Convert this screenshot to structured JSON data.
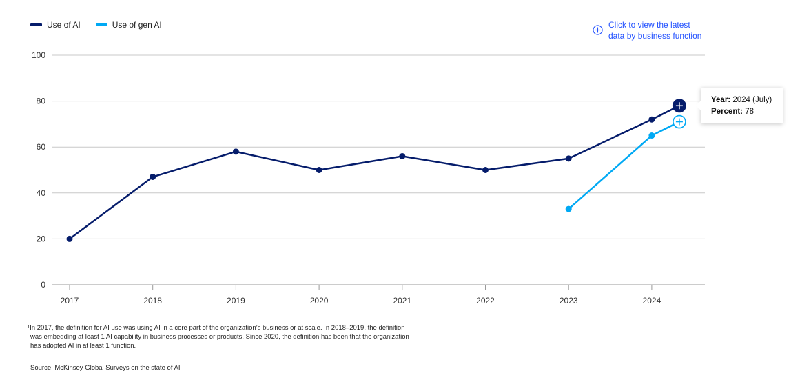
{
  "legend": {
    "items": [
      {
        "label": "Use of AI",
        "color": "#051c6b"
      },
      {
        "label": "Use of gen AI",
        "color": "#00a9f4"
      }
    ]
  },
  "cta": {
    "icon": "plus-circle-icon",
    "text_line1": "Click to view the latest",
    "text_line2": "data by business function",
    "color": "#2251ff"
  },
  "tooltip": {
    "year_label": "Year:",
    "year_value": "2024 (July)",
    "percent_label": "Percent:",
    "percent_value": "78"
  },
  "chart_data": {
    "type": "line",
    "x": [
      "2017",
      "2018",
      "2019",
      "2020",
      "2021",
      "2022",
      "2023",
      "2024",
      "2024 (July)"
    ],
    "xticks": [
      "2017",
      "2018",
      "2019",
      "2020",
      "2021",
      "2022",
      "2023",
      "2024"
    ],
    "yticks": [
      0,
      20,
      40,
      60,
      80,
      100
    ],
    "ylim": [
      0,
      100
    ],
    "grid": true,
    "legend_position": "top-left",
    "series": [
      {
        "name": "Use of AI",
        "color": "#051c6b",
        "values": [
          20,
          47,
          58,
          50,
          56,
          50,
          55,
          72,
          78
        ]
      },
      {
        "name": "Use of gen AI",
        "color": "#00a9f4",
        "values": [
          null,
          null,
          null,
          null,
          null,
          null,
          33,
          65,
          71
        ]
      }
    ]
  },
  "footnote": {
    "line1": "¹In 2017, the definition for AI use was using AI in a core part of the organization’s business or at scale. In 2018–2019, the definition",
    "line2": "was embedding at least 1 AI capability in business processes or products. Since 2020, the definition has been that the organization",
    "line3": "has adopted AI in at least 1 function."
  },
  "source": "Source: McKinsey Global Surveys on the state of AI"
}
